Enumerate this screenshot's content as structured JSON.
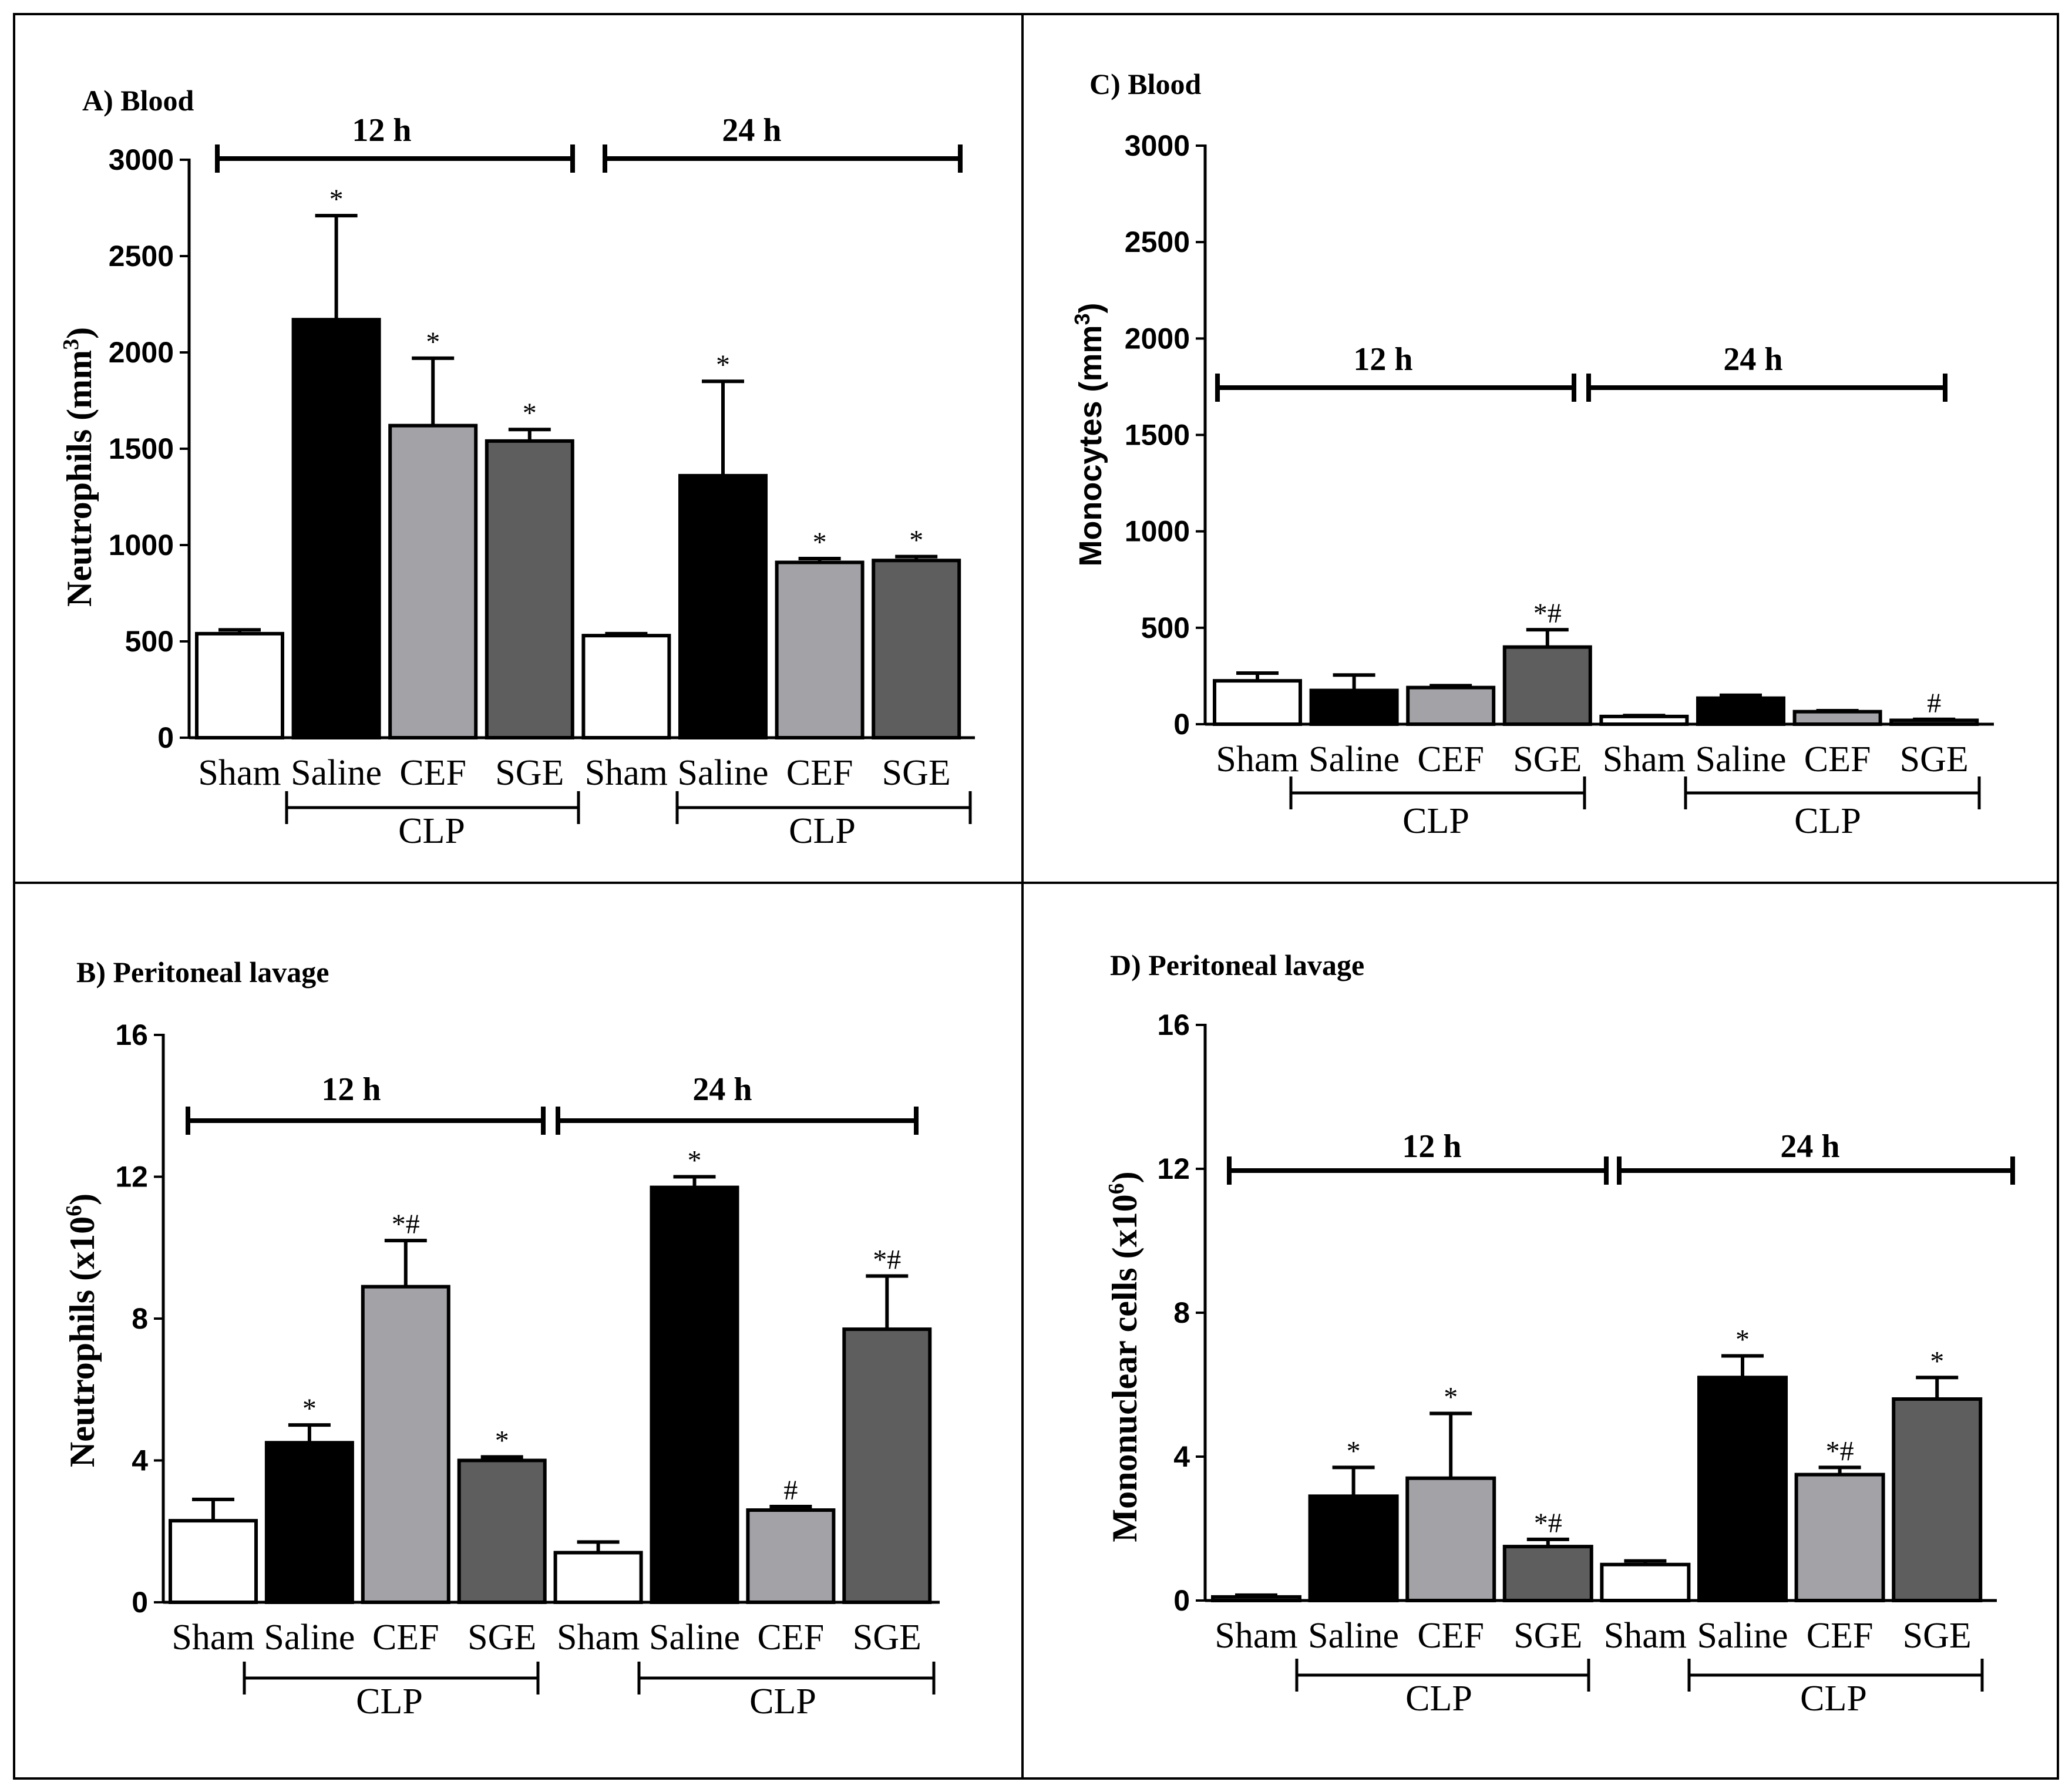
{
  "colors": {
    "Sham": "#ffffff",
    "Saline": "#000000",
    "CEF": "#a3a3a7",
    "SGE": "#5e5e5e"
  },
  "chart_data": [
    {
      "id": "A",
      "type": "bar",
      "title": "A) Blood",
      "ylabel": "Neutrophils (mm",
      "ylabel_sup": "3",
      "ylabel_end": ")",
      "ylim": [
        0,
        3000
      ],
      "yticks": [
        "0",
        "500",
        "1000",
        "1500",
        "2000",
        "2500",
        "3000"
      ],
      "time_labels": [
        "12 h",
        "24 h"
      ],
      "group_label": "CLP",
      "categories": [
        "Sham",
        "Saline",
        "CEF",
        "SGE",
        "Sham",
        "Saline",
        "CEF",
        "SGE"
      ],
      "values": [
        540,
        2170,
        1620,
        1540,
        530,
        1360,
        910,
        920
      ],
      "errors": [
        20,
        540,
        350,
        60,
        10,
        490,
        20,
        20
      ],
      "annotations": [
        "",
        "*",
        "*",
        "*",
        "",
        "*",
        "*",
        "*"
      ]
    },
    {
      "id": "C",
      "type": "bar",
      "title": "C) Blood",
      "ylabel": "Monocytes (mm",
      "ylabel_sup": "3",
      "ylabel_end": ")",
      "ylim": [
        0,
        3000
      ],
      "yticks": [
        "0",
        "500",
        "1000",
        "1500",
        "2000",
        "2500",
        "3000"
      ],
      "time_labels": [
        "12 h",
        "24 h"
      ],
      "group_label": "CLP",
      "categories": [
        "Sham",
        "Saline",
        "CEF",
        "SGE",
        "Sham",
        "Saline",
        "CEF",
        "SGE"
      ],
      "values": [
        225,
        175,
        190,
        400,
        40,
        135,
        65,
        20
      ],
      "errors": [
        40,
        80,
        10,
        90,
        5,
        15,
        5,
        5
      ],
      "annotations": [
        "",
        "",
        "",
        "*#",
        "",
        "",
        "",
        "#"
      ]
    },
    {
      "id": "B",
      "type": "bar",
      "title": "B) Peritoneal lavage",
      "ylabel": "Neutrophils (x10",
      "ylabel_sup": "6",
      "ylabel_end": ")",
      "ylim": [
        0,
        16
      ],
      "yticks": [
        "0",
        "4",
        "8",
        "12",
        "16"
      ],
      "time_labels": [
        "12 h",
        "24 h"
      ],
      "group_label": "CLP",
      "categories": [
        "Sham",
        "Saline",
        "CEF",
        "SGE",
        "Sham",
        "Saline",
        "CEF",
        "SGE"
      ],
      "values": [
        2.3,
        4.5,
        8.9,
        4.0,
        1.4,
        11.7,
        2.6,
        7.7
      ],
      "errors": [
        0.6,
        0.5,
        1.3,
        0.1,
        0.3,
        0.3,
        0.1,
        1.5
      ],
      "annotations": [
        "",
        "*",
        "*#",
        "*",
        "",
        "*",
        "#",
        "*#"
      ]
    },
    {
      "id": "D",
      "type": "bar",
      "title": "D) Peritoneal lavage",
      "ylabel": "Mononuclear cells (x10",
      "ylabel_sup": "6",
      "ylabel_end": ")",
      "ylim": [
        0,
        16
      ],
      "yticks": [
        "0",
        "4",
        "8",
        "12",
        "16"
      ],
      "time_labels": [
        "12 h",
        "24 h"
      ],
      "group_label": "CLP",
      "categories": [
        "Sham",
        "Saline",
        "CEF",
        "SGE",
        "Sham",
        "Saline",
        "CEF",
        "SGE"
      ],
      "values": [
        0.1,
        2.9,
        3.4,
        1.5,
        1.0,
        6.2,
        3.5,
        5.6
      ],
      "errors": [
        0.05,
        0.8,
        1.8,
        0.2,
        0.1,
        0.6,
        0.2,
        0.6
      ],
      "annotations": [
        "",
        "*",
        "*",
        "*#",
        "",
        "*",
        "*#",
        "*"
      ]
    }
  ]
}
